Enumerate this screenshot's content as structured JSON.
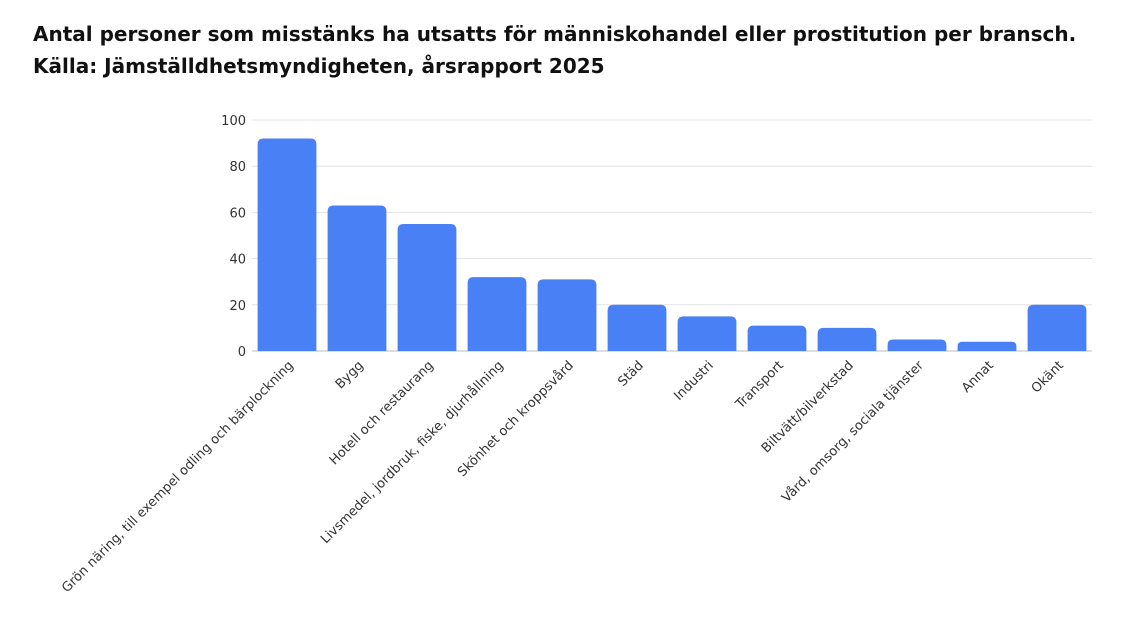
{
  "chart_data": {
    "type": "bar",
    "title": "Antal personer som misstänks ha utsatts för människohandel eller prostitution per bransch.",
    "subtitle": "Källa: Jämställdhetsmyndigheten, årsrapport 2025",
    "xlabel": "",
    "ylabel": "",
    "ylim": [
      0,
      100
    ],
    "yticks": [
      "0",
      "20",
      "40",
      "60",
      "80",
      "100"
    ],
    "grid": true,
    "legend": "none",
    "bar_color": "#4a80f5",
    "categories": [
      "Grön näring, till exempel odling och bärplockning",
      "Bygg",
      "Hotell och restaurang",
      "Livsmedel, jordbruk, fiske, djurhållning",
      "Skönhet och kroppsvård",
      "Städ",
      "Industri",
      "Transport",
      "Biltvätt/bilverkstad",
      "Vård, omsorg, sociala tjänster",
      "Annat",
      "Okänt"
    ],
    "values": [
      92,
      63,
      55,
      32,
      31,
      20,
      15,
      11,
      10,
      5,
      4,
      20
    ]
  }
}
